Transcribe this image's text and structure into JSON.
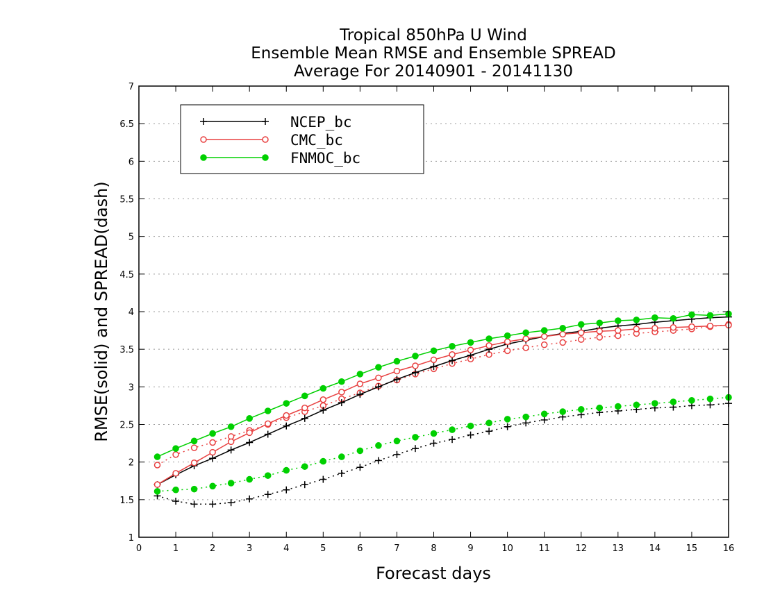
{
  "chart_data": {
    "type": "line",
    "title": [
      "Tropical 850hPa U Wind",
      "Ensemble Mean RMSE and Ensemble SPREAD",
      "Average For 20140901 - 20141130"
    ],
    "xlabel": "Forecast days",
    "ylabel": "RMSE(solid) and SPREAD(dash)",
    "xlim": [
      0,
      16
    ],
    "ylim": [
      1,
      7
    ],
    "xticks": [
      "0",
      "1",
      "2",
      "3",
      "4",
      "5",
      "6",
      "7",
      "8",
      "9",
      "10",
      "11",
      "12",
      "13",
      "14",
      "15",
      "16"
    ],
    "yticks": [
      "1",
      "1.5",
      "2",
      "2.5",
      "3",
      "3.5",
      "4",
      "4.5",
      "5",
      "5.5",
      "6",
      "6.5",
      "7"
    ],
    "grid": "horizontal-dotted",
    "legend_position": "top-left",
    "x": [
      0.5,
      1,
      1.5,
      2,
      2.5,
      3,
      3.5,
      4,
      4.5,
      5,
      5.5,
      6,
      6.5,
      7,
      7.5,
      8,
      8.5,
      9,
      9.5,
      10,
      10.5,
      11,
      11.5,
      12,
      12.5,
      13,
      13.5,
      14,
      14.5,
      15,
      15.5,
      16
    ],
    "series": [
      {
        "name": "NCEP_bc",
        "color": "#000000",
        "marker": "plus",
        "rmse": [
          1.7,
          1.83,
          1.95,
          2.05,
          2.16,
          2.26,
          2.37,
          2.48,
          2.58,
          2.69,
          2.79,
          2.9,
          3.0,
          3.1,
          3.19,
          3.27,
          3.35,
          3.42,
          3.5,
          3.57,
          3.62,
          3.67,
          3.71,
          3.74,
          3.78,
          3.81,
          3.83,
          3.86,
          3.88,
          3.9,
          3.92,
          3.93
        ],
        "spread": [
          1.55,
          1.48,
          1.44,
          1.44,
          1.46,
          1.51,
          1.57,
          1.63,
          1.7,
          1.77,
          1.85,
          1.93,
          2.02,
          2.1,
          2.18,
          2.25,
          2.3,
          2.36,
          2.41,
          2.47,
          2.52,
          2.56,
          2.6,
          2.63,
          2.66,
          2.68,
          2.7,
          2.72,
          2.73,
          2.75,
          2.76,
          2.78
        ]
      },
      {
        "name": "CMC_bc",
        "color": "#e84040",
        "marker": "open-circle",
        "rmse": [
          1.7,
          1.85,
          1.99,
          2.13,
          2.27,
          2.39,
          2.51,
          2.62,
          2.72,
          2.83,
          2.93,
          3.04,
          3.12,
          3.21,
          3.28,
          3.36,
          3.43,
          3.49,
          3.55,
          3.6,
          3.64,
          3.67,
          3.7,
          3.72,
          3.74,
          3.75,
          3.77,
          3.78,
          3.79,
          3.8,
          3.81,
          3.82
        ],
        "spread": [
          1.96,
          2.1,
          2.19,
          2.26,
          2.34,
          2.42,
          2.5,
          2.59,
          2.67,
          2.75,
          2.84,
          2.92,
          3.01,
          3.09,
          3.17,
          3.24,
          3.31,
          3.37,
          3.43,
          3.48,
          3.52,
          3.56,
          3.59,
          3.63,
          3.66,
          3.68,
          3.71,
          3.73,
          3.75,
          3.77,
          3.8,
          3.83
        ]
      },
      {
        "name": "FNMOC_bc",
        "color": "#00d000",
        "marker": "filled-circle",
        "rmse": [
          2.07,
          2.18,
          2.28,
          2.38,
          2.47,
          2.58,
          2.68,
          2.78,
          2.88,
          2.98,
          3.07,
          3.17,
          3.26,
          3.34,
          3.41,
          3.48,
          3.54,
          3.59,
          3.64,
          3.68,
          3.72,
          3.75,
          3.78,
          3.83,
          3.85,
          3.88,
          3.89,
          3.92,
          3.91,
          3.96,
          3.95,
          3.97
        ],
        "spread": [
          1.61,
          1.63,
          1.64,
          1.68,
          1.72,
          1.77,
          1.82,
          1.89,
          1.94,
          2.01,
          2.07,
          2.15,
          2.22,
          2.28,
          2.33,
          2.38,
          2.43,
          2.48,
          2.52,
          2.57,
          2.6,
          2.64,
          2.67,
          2.7,
          2.72,
          2.74,
          2.76,
          2.78,
          2.8,
          2.82,
          2.84,
          2.86
        ]
      }
    ]
  }
}
